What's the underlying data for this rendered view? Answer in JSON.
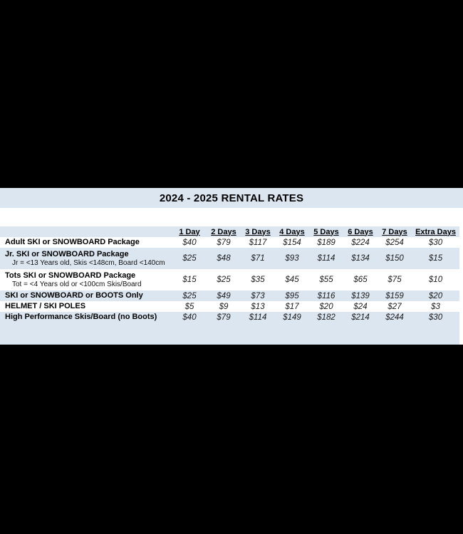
{
  "title_band": {
    "title": "2024 - 2025 RENTAL RATES"
  },
  "colors": {
    "band_blue": "#dce6f1",
    "letterbox_black": "#000000"
  },
  "table": {
    "column_headers": [
      "1 Day",
      "2 Days",
      "3 Days",
      "4 Days",
      "5 Days",
      "6 Days",
      "7 Days",
      "Extra Days"
    ],
    "rows": [
      {
        "label": "Adult SKI or SNOWBOARD Package",
        "sublabel": "",
        "values": [
          "$40",
          "$79",
          "$117",
          "$154",
          "$189",
          "$224",
          "$254",
          "$30"
        ]
      },
      {
        "label": "Jr. SKI or SNOWBOARD Package",
        "sublabel": "Jr = <13 Years old, Skis <148cm, Board <140cm",
        "values": [
          "$25",
          "$48",
          "$71",
          "$93",
          "$114",
          "$134",
          "$150",
          "$15"
        ]
      },
      {
        "label": "Tots SKI or SNOWBOARD Package",
        "sublabel": "Tot = <4 Years old or <100cm Skis/Board",
        "values": [
          "$15",
          "$25",
          "$35",
          "$45",
          "$55",
          "$65",
          "$75",
          "$10"
        ]
      },
      {
        "label": "SKI or SNOWBOARD or BOOTS Only",
        "sublabel": "",
        "values": [
          "$25",
          "$49",
          "$73",
          "$95",
          "$116",
          "$139",
          "$159",
          "$20"
        ]
      },
      {
        "label": "HELMET / SKI POLES",
        "sublabel": "",
        "values": [
          "$5",
          "$9",
          "$13",
          "$17",
          "$20",
          "$24",
          "$27",
          "$3"
        ]
      },
      {
        "label": "High Performance Skis/Board (no Boots)",
        "sublabel": "",
        "values": [
          "$40",
          "$79",
          "$114",
          "$149",
          "$182",
          "$214",
          "$244",
          "$30"
        ]
      }
    ]
  }
}
